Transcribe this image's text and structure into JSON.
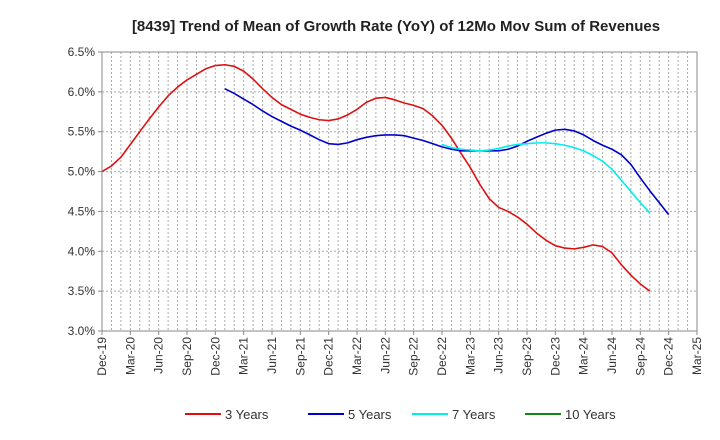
{
  "chart_data": {
    "type": "line",
    "title": "[8439]  Trend of Mean of Growth Rate (YoY) of 12Mo Mov Sum of Revenues",
    "xlabel": "",
    "ylabel": "",
    "ylim": [
      3.0,
      6.5
    ],
    "yticks": [
      "3.0%",
      "3.5%",
      "4.0%",
      "4.5%",
      "5.0%",
      "5.5%",
      "6.0%",
      "6.5%"
    ],
    "ytick_values": [
      3.0,
      3.5,
      4.0,
      4.5,
      5.0,
      5.5,
      6.0,
      6.5
    ],
    "xticks": [
      "Dec-19",
      "Mar-20",
      "Jun-20",
      "Sep-20",
      "Dec-20",
      "Mar-21",
      "Jun-21",
      "Sep-21",
      "Dec-21",
      "Mar-22",
      "Jun-22",
      "Sep-22",
      "Dec-22",
      "Mar-23",
      "Jun-23",
      "Sep-23",
      "Dec-23",
      "Mar-24",
      "Jun-24",
      "Sep-24",
      "Dec-24",
      "Mar-25"
    ],
    "x_months": 63,
    "grid": true,
    "legend_position": "bottom",
    "series": [
      {
        "name": "3 Years",
        "color": "#dd1111",
        "start_month": 0,
        "values": [
          5.0,
          5.07,
          5.18,
          5.34,
          5.5,
          5.66,
          5.81,
          5.95,
          6.06,
          6.15,
          6.22,
          6.29,
          6.33,
          6.34,
          6.32,
          6.26,
          6.16,
          6.04,
          5.93,
          5.84,
          5.78,
          5.72,
          5.68,
          5.65,
          5.64,
          5.66,
          5.71,
          5.78,
          5.87,
          5.92,
          5.93,
          5.9,
          5.86,
          5.83,
          5.79,
          5.7,
          5.58,
          5.42,
          5.23,
          5.05,
          4.84,
          4.66,
          4.55,
          4.5,
          4.43,
          4.34,
          4.23,
          4.14,
          4.07,
          4.04,
          4.03,
          4.05,
          4.08,
          4.06,
          3.98,
          3.83,
          3.7,
          3.59,
          3.5
        ]
      },
      {
        "name": "5 Years",
        "color": "#0000cc",
        "start_month": 13,
        "values": [
          6.04,
          5.98,
          5.91,
          5.84,
          5.76,
          5.69,
          5.63,
          5.57,
          5.52,
          5.46,
          5.4,
          5.35,
          5.34,
          5.36,
          5.4,
          5.43,
          5.45,
          5.46,
          5.46,
          5.45,
          5.42,
          5.39,
          5.35,
          5.31,
          5.28,
          5.26,
          5.26,
          5.26,
          5.26,
          5.26,
          5.28,
          5.32,
          5.38,
          5.43,
          5.48,
          5.52,
          5.53,
          5.51,
          5.46,
          5.39,
          5.33,
          5.28,
          5.21,
          5.09,
          4.92,
          4.76,
          4.61,
          4.46
        ]
      },
      {
        "name": "7 Years",
        "color": "#00eeee",
        "start_month": 36,
        "values": [
          5.34,
          5.3,
          5.28,
          5.27,
          5.26,
          5.27,
          5.29,
          5.32,
          5.34,
          5.35,
          5.36,
          5.36,
          5.35,
          5.33,
          5.3,
          5.26,
          5.2,
          5.13,
          5.03,
          4.89,
          4.75,
          4.61,
          4.48
        ]
      },
      {
        "name": "10 Years",
        "color": "#118811",
        "start_month": 0,
        "values": []
      }
    ]
  }
}
